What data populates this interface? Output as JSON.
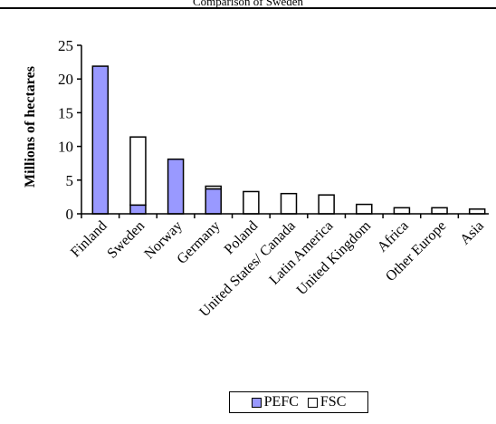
{
  "header": {
    "partial_title": "Comparison of Sweden"
  },
  "colors": {
    "pefc": "#9999ff",
    "fsc": "#ffffff",
    "dark_segment": "#1a1a1a",
    "axis": "#000000"
  },
  "chart_data": {
    "type": "bar",
    "stacked": true,
    "title": "",
    "xlabel": "",
    "ylabel": "Millions of hectares",
    "ylim": [
      0,
      25
    ],
    "yticks": [
      0,
      5,
      10,
      15,
      20,
      25
    ],
    "grid": false,
    "legend_position": "bottom",
    "categories": [
      "Finland",
      "Sweden",
      "Norway",
      "Germany",
      "Poland",
      "United States/ Canada",
      "Latin America",
      "United Kingdom",
      "Africa",
      "Other Europe",
      "Asia"
    ],
    "series": [
      {
        "name": "PEFC",
        "values": [
          21.9,
          1.3,
          8.1,
          3.7,
          0,
          0,
          0,
          0,
          0,
          0,
          0
        ]
      },
      {
        "name": "FSC",
        "values": [
          0,
          10.1,
          0,
          0.4,
          3.3,
          3.0,
          2.8,
          1.4,
          0.9,
          0.9,
          0.7
        ]
      }
    ]
  }
}
